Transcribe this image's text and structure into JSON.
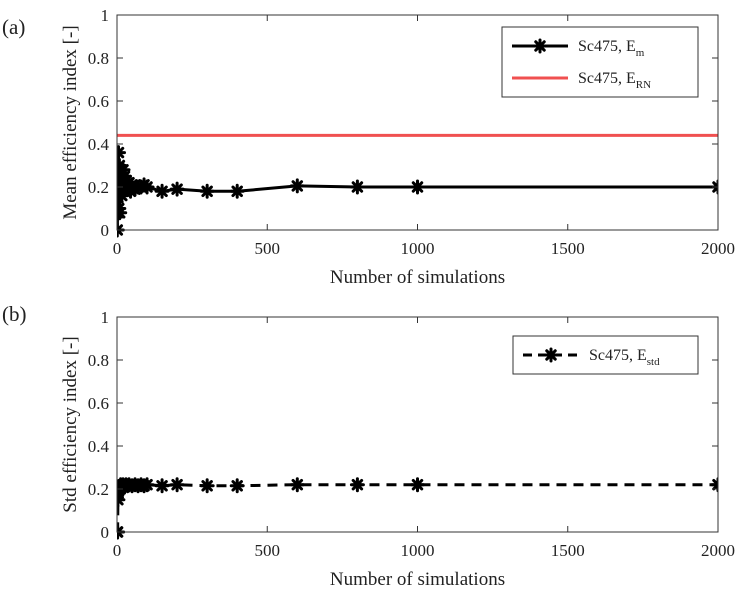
{
  "chart_data": [
    {
      "panel_label": "(a)",
      "type": "line",
      "xlabel": "Number of simulations",
      "ylabel": "Mean efficiency index [-]",
      "xlim": [
        0,
        2000
      ],
      "ylim": [
        0,
        1
      ],
      "xticks": [
        "0",
        "500",
        "1000",
        "1500",
        "2000"
      ],
      "yticks": [
        "0",
        "0.2",
        "0.4",
        "0.6",
        "0.8",
        "1"
      ],
      "grid": false,
      "legend_position": "top-right",
      "series": [
        {
          "name": "Sc475, E",
          "name_sub": "m",
          "color": "#000000",
          "line": "solid",
          "marker": "asterisk",
          "x": [
            1,
            2,
            3,
            4,
            5,
            6,
            7,
            8,
            9,
            10,
            12,
            14,
            16,
            18,
            20,
            22,
            25,
            28,
            30,
            35,
            40,
            45,
            50,
            60,
            70,
            80,
            90,
            100,
            150,
            200,
            300,
            400,
            600,
            800,
            1000,
            2000
          ],
          "y": [
            0.0,
            0.08,
            0.15,
            0.28,
            0.36,
            0.1,
            0.22,
            0.3,
            0.08,
            0.28,
            0.18,
            0.25,
            0.16,
            0.22,
            0.28,
            0.2,
            0.25,
            0.19,
            0.23,
            0.2,
            0.22,
            0.18,
            0.21,
            0.19,
            0.2,
            0.2,
            0.21,
            0.2,
            0.18,
            0.19,
            0.18,
            0.18,
            0.205,
            0.2,
            0.2,
            0.2
          ]
        },
        {
          "name": "Sc475, E",
          "name_sub": "RN",
          "color": "#f05050",
          "line": "solid",
          "marker": "none",
          "x": [
            0,
            2000
          ],
          "y": [
            0.44,
            0.44
          ]
        }
      ]
    },
    {
      "panel_label": "(b)",
      "type": "line",
      "xlabel": "Number of simulations",
      "ylabel": "Std efficiency index [-]",
      "xlim": [
        0,
        2000
      ],
      "ylim": [
        0,
        1
      ],
      "xticks": [
        "0",
        "500",
        "1000",
        "1500",
        "2000"
      ],
      "yticks": [
        "0",
        "0.2",
        "0.4",
        "0.6",
        "0.8",
        "1"
      ],
      "grid": false,
      "legend_position": "top-right",
      "series": [
        {
          "name": "Sc475, E",
          "name_sub": "std",
          "color": "#000000",
          "line": "dashed",
          "marker": "asterisk",
          "x": [
            1,
            2,
            3,
            4,
            5,
            6,
            8,
            10,
            12,
            15,
            20,
            25,
            30,
            35,
            40,
            50,
            60,
            70,
            80,
            90,
            100,
            150,
            200,
            300,
            400,
            600,
            800,
            1000,
            2000
          ],
          "y": [
            0.0,
            0.0,
            0.15,
            0.18,
            0.19,
            0.2,
            0.21,
            0.2,
            0.22,
            0.215,
            0.22,
            0.21,
            0.22,
            0.215,
            0.22,
            0.215,
            0.22,
            0.215,
            0.22,
            0.215,
            0.22,
            0.215,
            0.22,
            0.215,
            0.215,
            0.22,
            0.22,
            0.22,
            0.22
          ]
        }
      ]
    }
  ]
}
